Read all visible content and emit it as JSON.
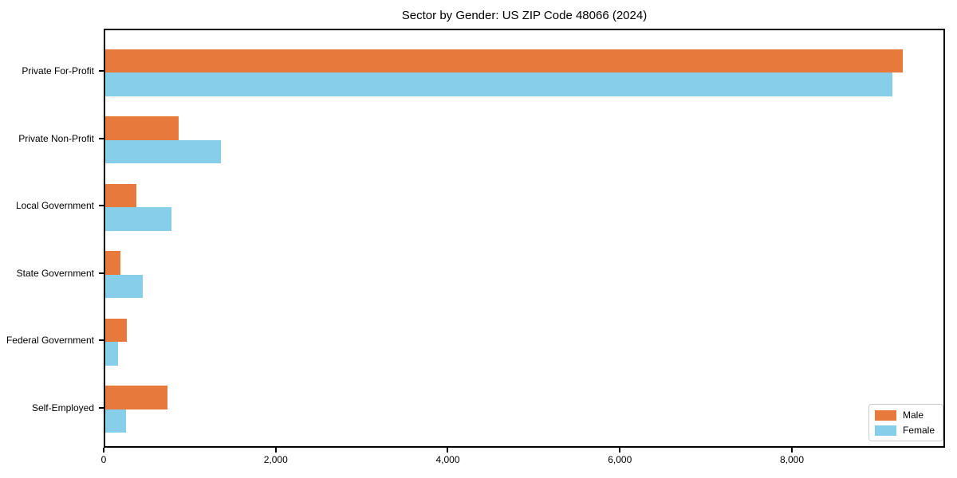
{
  "figure": {
    "title": "Sector by Gender: US ZIP Code 48066 (2024)"
  },
  "chart_data": {
    "type": "bar",
    "orientation": "horizontal",
    "title": "Sector by Gender: US ZIP Code 48066 (2024)",
    "categories": [
      "Private For-Profit",
      "Private Non-Profit",
      "Local Government",
      "State Government",
      "Federal Government",
      "Self-Employed"
    ],
    "series": [
      {
        "name": "Male",
        "color": "#e8793d",
        "values": [
          9310,
          860,
          360,
          175,
          250,
          725
        ]
      },
      {
        "name": "Female",
        "color": "#87ceeb",
        "values": [
          9180,
          1350,
          770,
          435,
          150,
          240
        ]
      }
    ],
    "xlabel": "",
    "ylabel": "",
    "xlim": [
      0,
      9780
    ],
    "xticks": [
      0,
      2000,
      4000,
      6000,
      8000
    ],
    "xtick_labels": [
      "0",
      "2,000",
      "4,000",
      "6,000",
      "8,000"
    ],
    "grid": false,
    "legend": {
      "position": "lower right",
      "items": [
        "Male",
        "Female"
      ]
    }
  }
}
